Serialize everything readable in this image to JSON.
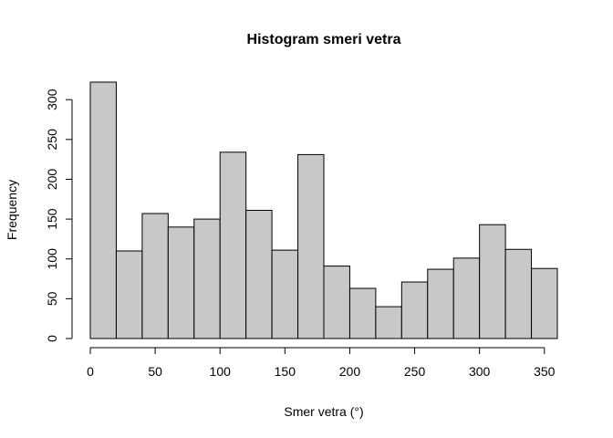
{
  "chart_data": {
    "type": "bar",
    "title": "Histogram smeri vetra",
    "xlabel": "Smer vetra (°)",
    "ylabel": "Frequency",
    "bin_edges": [
      0,
      20,
      40,
      60,
      80,
      100,
      120,
      140,
      160,
      180,
      200,
      220,
      240,
      260,
      280,
      300,
      320,
      340,
      360
    ],
    "values": [
      322,
      110,
      157,
      140,
      150,
      234,
      161,
      111,
      231,
      91,
      63,
      40,
      71,
      87,
      101,
      143,
      112,
      88
    ],
    "xlim": [
      0,
      360
    ],
    "ylim": [
      0,
      322
    ],
    "x_ticks": [
      0,
      50,
      100,
      150,
      200,
      250,
      300,
      350
    ],
    "y_ticks": [
      0,
      50,
      100,
      150,
      200,
      250,
      300
    ],
    "bar_color": "#c8c8c8",
    "grid": false
  }
}
